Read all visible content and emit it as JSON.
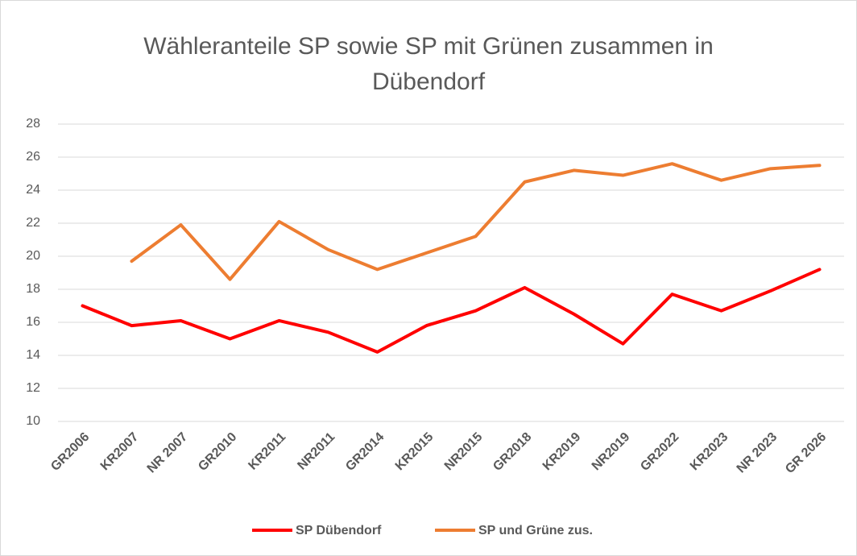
{
  "chart_data": {
    "type": "line",
    "title": "Wähleranteile SP sowie SP mit Grünen zusammen in Dübendorf",
    "categories": [
      "GR2006",
      "KR2007",
      "NR 2007",
      "GR2010",
      "KR2011",
      "NR2011",
      "GR2014",
      "KR2015",
      "NR2015",
      "GR2018",
      "KR2019",
      "NR2019",
      "GR2022",
      "KR2023",
      "NR 2023",
      "GR 2026"
    ],
    "series": [
      {
        "name": "SP Dübendorf",
        "color": "#ff0000",
        "values": [
          17.0,
          15.8,
          16.1,
          15.0,
          16.1,
          15.4,
          14.2,
          15.8,
          16.7,
          18.1,
          16.5,
          14.7,
          17.7,
          16.7,
          17.9,
          19.2
        ]
      },
      {
        "name": "SP und Grüne zus.",
        "color": "#ed7d31",
        "values": [
          null,
          19.7,
          21.9,
          18.6,
          22.1,
          20.4,
          19.2,
          20.2,
          21.2,
          24.5,
          25.2,
          24.9,
          25.6,
          24.6,
          25.3,
          25.5
        ]
      }
    ],
    "ylim": [
      10,
      28
    ],
    "yticks": [
      10,
      12,
      14,
      16,
      18,
      20,
      22,
      24,
      26,
      28
    ],
    "grid": true,
    "legend": "bottom"
  }
}
